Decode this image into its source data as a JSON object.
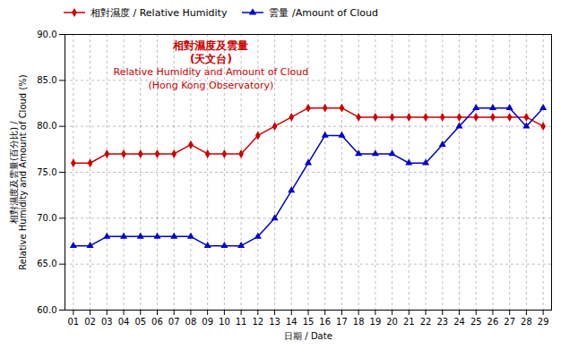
{
  "chart_data": {
    "type": "line",
    "x_label": "日期 / Date",
    "y_label": "相對濕度及雲量(百分比) /\nRelative Humidity and Amount of Cloud (%)",
    "x": [
      1,
      2,
      3,
      4,
      5,
      6,
      7,
      8,
      9,
      10,
      11,
      12,
      13,
      14,
      15,
      16,
      17,
      18,
      19,
      20,
      21,
      22,
      23,
      24,
      25,
      26,
      27,
      28,
      29
    ],
    "series": [
      {
        "name": "相對濕度 / Relative Humidity",
        "color": "#cc0000",
        "marker": "diamond",
        "values": [
          76,
          76,
          77,
          77,
          77,
          77,
          77,
          78,
          77,
          77,
          77,
          79,
          80,
          81,
          82,
          82,
          82,
          81,
          81,
          81,
          81,
          81,
          81,
          81,
          81,
          81,
          81,
          81,
          80
        ]
      },
      {
        "name": "雲量 /Amount of Cloud",
        "color": "#0000cc",
        "marker": "triangle",
        "values": [
          67,
          67,
          68,
          68,
          68,
          68,
          68,
          68,
          67,
          67,
          67,
          68,
          70,
          73,
          76,
          79,
          79,
          77,
          77,
          77,
          76,
          76,
          78,
          80,
          82,
          82,
          82,
          80,
          82
        ]
      }
    ],
    "xlim": [
      0.5,
      29.5
    ],
    "xticks": [
      {
        "value": 1,
        "label": "01"
      },
      {
        "value": 2,
        "label": "02"
      },
      {
        "value": 3,
        "label": "03"
      },
      {
        "value": 4,
        "label": "04"
      },
      {
        "value": 5,
        "label": "05"
      },
      {
        "value": 6,
        "label": "06"
      },
      {
        "value": 7,
        "label": "07"
      },
      {
        "value": 8,
        "label": "08"
      },
      {
        "value": 9,
        "label": "09"
      },
      {
        "value": 10,
        "label": "10"
      },
      {
        "value": 11,
        "label": "11"
      },
      {
        "value": 12,
        "label": "12"
      },
      {
        "value": 13,
        "label": "13"
      },
      {
        "value": 14,
        "label": "14"
      },
      {
        "value": 15,
        "label": "15"
      },
      {
        "value": 16,
        "label": "16"
      },
      {
        "value": 17,
        "label": "17"
      },
      {
        "value": 18,
        "label": "18"
      },
      {
        "value": 19,
        "label": "19"
      },
      {
        "value": 20,
        "label": "20"
      },
      {
        "value": 21,
        "label": "21"
      },
      {
        "value": 22,
        "label": "22"
      },
      {
        "value": 23,
        "label": "23"
      },
      {
        "value": 24,
        "label": "24"
      },
      {
        "value": 25,
        "label": "25"
      },
      {
        "value": 26,
        "label": "26"
      },
      {
        "value": 27,
        "label": "27"
      },
      {
        "value": 28,
        "label": "28"
      },
      {
        "value": 29,
        "label": "29"
      }
    ],
    "ylim": [
      60.0,
      90.0
    ],
    "yticks": [
      {
        "value": 60.0,
        "label": "60.0"
      },
      {
        "value": 65.0,
        "label": "65.0"
      },
      {
        "value": 70.0,
        "label": "70.0"
      },
      {
        "value": 75.0,
        "label": "75.0"
      },
      {
        "value": 80.0,
        "label": "80.0"
      },
      {
        "value": 85.0,
        "label": "85.0"
      },
      {
        "value": 90.0,
        "label": "90.0"
      }
    ],
    "grid": true,
    "legend": "upper left",
    "annotations": [
      {
        "text": "相對濕度及雲量",
        "color": "#cc0000"
      },
      {
        "text": "(天文台)",
        "color": "#cc0000"
      },
      {
        "text": "Relative Humidity and Amount of Cloud",
        "color": "#cc0000"
      },
      {
        "text": "(Hong Kong Observatory)",
        "color": "#cc0000"
      }
    ]
  }
}
